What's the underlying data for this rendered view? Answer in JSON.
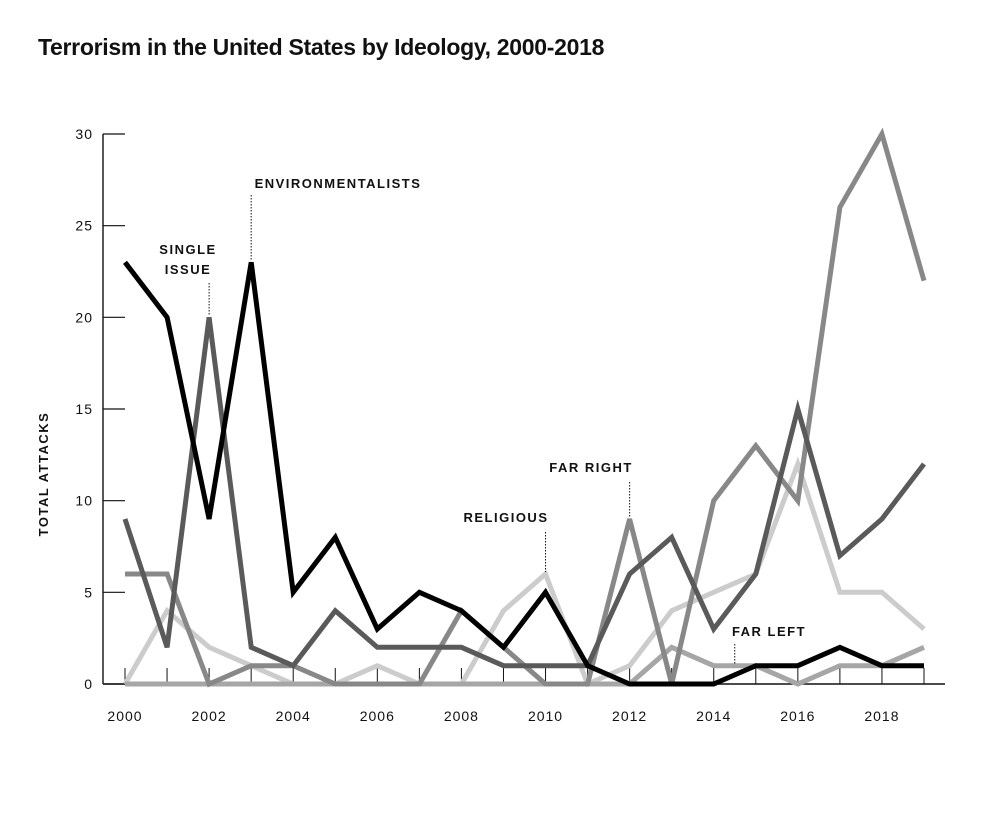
{
  "chart_data": {
    "type": "line",
    "title": "Terrorism in the United States by Ideology, 2000-2018",
    "ylabel": "TOTAL ATTACKS",
    "xlabel": "",
    "xlim": [
      2000,
      2019
    ],
    "ylim": [
      0,
      30
    ],
    "x": [
      2000,
      2001,
      2002,
      2003,
      2004,
      2005,
      2006,
      2007,
      2008,
      2009,
      2010,
      2011,
      2012,
      2013,
      2014,
      2015,
      2016,
      2017,
      2018,
      2019
    ],
    "x_ticks": [
      "2000",
      "2002",
      "2004",
      "2006",
      "2008",
      "2010",
      "2012",
      "2014",
      "2016",
      "2018"
    ],
    "y_ticks": [
      "0",
      "5",
      "10",
      "15",
      "20",
      "25",
      "30"
    ],
    "grid": false,
    "series": [
      {
        "name": "ENVIRONMENTALISTS",
        "color": "#000000",
        "values": [
          23,
          20,
          9,
          23,
          5,
          8,
          3,
          5,
          4,
          2,
          5,
          1,
          0,
          0,
          0,
          1,
          1,
          2,
          1,
          1
        ]
      },
      {
        "name": "SINGLE ISSUE",
        "color": "#5a5a5a",
        "values": [
          9,
          2,
          20,
          2,
          1,
          4,
          2,
          2,
          2,
          1,
          1,
          1,
          6,
          8,
          3,
          6,
          15,
          7,
          9,
          12
        ]
      },
      {
        "name": "FAR RIGHT",
        "color": "#888888",
        "values": [
          6,
          6,
          0,
          1,
          1,
          0,
          0,
          0,
          4,
          2,
          0,
          0,
          9,
          0,
          10,
          13,
          10,
          26,
          30,
          22
        ]
      },
      {
        "name": "RELIGIOUS",
        "color": "#cccccc",
        "values": [
          0,
          4,
          2,
          1,
          0,
          0,
          1,
          0,
          0,
          4,
          6,
          0,
          1,
          4,
          5,
          6,
          12,
          5,
          5,
          3
        ]
      },
      {
        "name": "FAR LEFT",
        "color": "#a6a6a6",
        "values": [
          0,
          0,
          0,
          0,
          0,
          0,
          0,
          0,
          0,
          0,
          0,
          0,
          0,
          2,
          1,
          1,
          0,
          1,
          1,
          2
        ]
      }
    ],
    "annotations": [
      {
        "lines": [
          "ENVIRONMENTALISTS"
        ],
        "x": 2003,
        "y": 23
      },
      {
        "lines": [
          "SINGLE",
          "ISSUE"
        ],
        "x": 2002,
        "y": 20
      },
      {
        "lines": [
          "RELIGIOUS"
        ],
        "x": 2010,
        "y": 6
      },
      {
        "lines": [
          "FAR RIGHT"
        ],
        "x": 2012,
        "y": 9
      },
      {
        "lines": [
          "FAR LEFT"
        ],
        "x": 2014.5,
        "y": 1
      }
    ]
  }
}
